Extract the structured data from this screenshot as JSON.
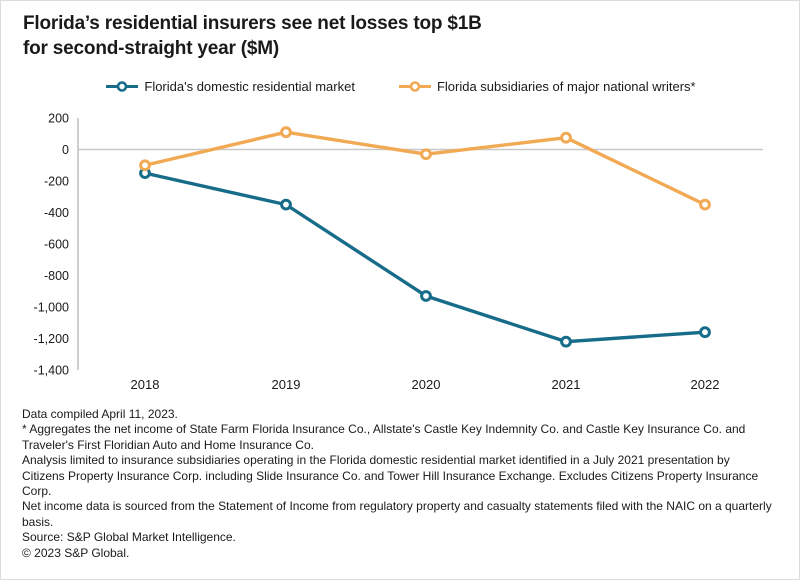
{
  "title": {
    "line1": "Florida’s residential insurers see net losses top $1B",
    "line2": "for second-straight year ($M)"
  },
  "legend": [
    {
      "label": "Florida's domestic residential market",
      "color": "#176C8A"
    },
    {
      "label": "Florida subsidiaries of major national writers*",
      "color": "#F2A954"
    }
  ],
  "chart_data": {
    "type": "line",
    "title": "Florida's residential insurers see net losses top $1B for second-straight year ($M)",
    "x": [
      "2018",
      "2019",
      "2020",
      "2021",
      "2022"
    ],
    "series": [
      {
        "name": "Florida's domestic residential market",
        "color": "#176C8A",
        "values": [
          -150,
          -350,
          -930,
          -1220,
          -1160
        ]
      },
      {
        "name": "Florida subsidiaries of major national writers*",
        "color": "#F2A954",
        "values": [
          -100,
          110,
          -30,
          75,
          -350
        ]
      }
    ],
    "ylim": [
      -1400,
      200
    ],
    "ytick_labels": [
      "200",
      "0",
      "-200",
      "-400",
      "-600",
      "-800",
      "-1,000",
      "-1,200",
      "-1,400"
    ],
    "xlabel": "",
    "ylabel": "",
    "units": "$M",
    "grid": "zero-baseline-only",
    "legend_position": "top",
    "marker": "open-circle"
  },
  "footnotes": [
    "Data compiled April 11, 2023.",
    "* Aggregates the net income of State Farm Florida Insurance Co., Allstate's Castle Key Indemnity Co. and Castle Key Insurance Co. and Traveler's First Floridian Auto and Home Insurance Co.",
    "Analysis limited to insurance subsidiaries operating in the Florida domestic residential market identified in a July 2021 presentation by Citizens Property Insurance Corp. including Slide Insurance Co. and Tower Hill Insurance Exchange. Excludes Citizens Property Insurance Corp.",
    "Net income data is sourced from the Statement of Income from regulatory property and casualty statements filed with the NAIC on a quarterly basis.",
    "Source: S&P Global Market Intelligence.",
    "© 2023 S&P Global."
  ],
  "colors": {
    "teal_series": "#176C8A",
    "orange_series": "#F2A954",
    "text": "#1a1a1a",
    "axis_line": "#b9b9b9",
    "zero_line": "#c8c8c8",
    "marker_fill": "#ffffff",
    "card_border": "#dcdcdc"
  }
}
